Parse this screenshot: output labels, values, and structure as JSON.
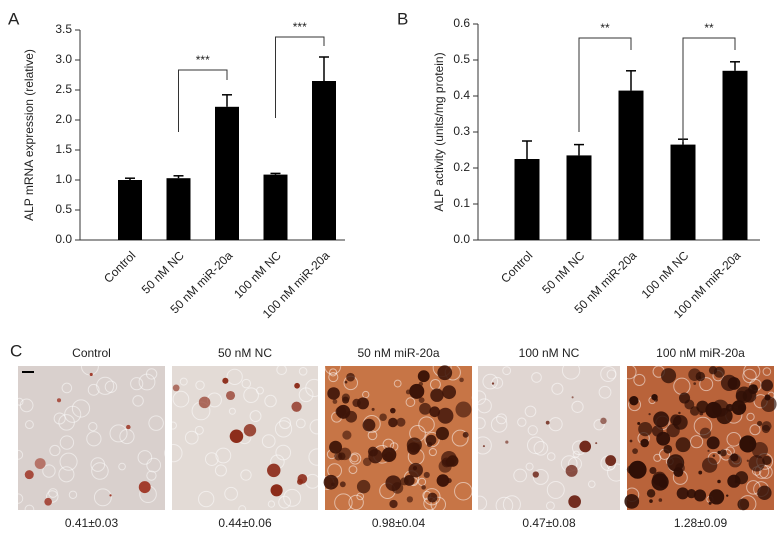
{
  "chart_data": [
    {
      "type": "bar",
      "panel_label": "A",
      "ylabel": "ALP mRNA expression (relative)",
      "categories": [
        "Control",
        "50 nM NC",
        "50 nM miR-20a",
        "100 nM NC",
        "100 nM miR-20a"
      ],
      "values": [
        1.0,
        1.03,
        2.22,
        1.09,
        2.65
      ],
      "errors": [
        0.03,
        0.04,
        0.2,
        0.02,
        0.4
      ],
      "color": "#000000",
      "ylim": [
        0,
        3.5
      ],
      "yticks": [
        {
          "value": 0,
          "label": "0.0"
        },
        {
          "value": 0.5,
          "label": "0.5"
        },
        {
          "value": 1,
          "label": "1.0"
        },
        {
          "value": 1.5,
          "label": "1.5"
        },
        {
          "value": 2,
          "label": "2.0"
        },
        {
          "value": 2.5,
          "label": "2.5"
        },
        {
          "value": 3,
          "label": "3.0"
        },
        {
          "value": 3.5,
          "label": "3.5"
        }
      ],
      "annotations": [
        "***",
        "***"
      ]
    },
    {
      "type": "bar",
      "panel_label": "B",
      "ylabel": "ALP activity (units/mg protein)",
      "categories": [
        "Control",
        "50 nM NC",
        "50 nM miR-20a",
        "100 nM NC",
        "100 nM miR-20a"
      ],
      "values": [
        0.225,
        0.235,
        0.415,
        0.265,
        0.47
      ],
      "errors": [
        0.05,
        0.03,
        0.055,
        0.015,
        0.025
      ],
      "color": "#000000",
      "ylim": [
        0,
        0.6
      ],
      "yticks": [
        {
          "value": 0,
          "label": "0.0"
        },
        0.1,
        0.2,
        0.3,
        0.4,
        0.5,
        0.6
      ],
      "annotations": [
        "**",
        "**"
      ]
    }
  ],
  "panel_c": {
    "label": "C",
    "images": [
      {
        "title": "Control",
        "value": "0.41±0.03"
      },
      {
        "title": "50 nM NC",
        "value": "0.44±0.06"
      },
      {
        "title": "50 nM miR-20a",
        "value": "0.98±0.04"
      },
      {
        "title": "100 nM NC",
        "value": "0.47±0.08"
      },
      {
        "title": "100 nM miR-20a",
        "value": "1.28±0.09"
      }
    ]
  }
}
